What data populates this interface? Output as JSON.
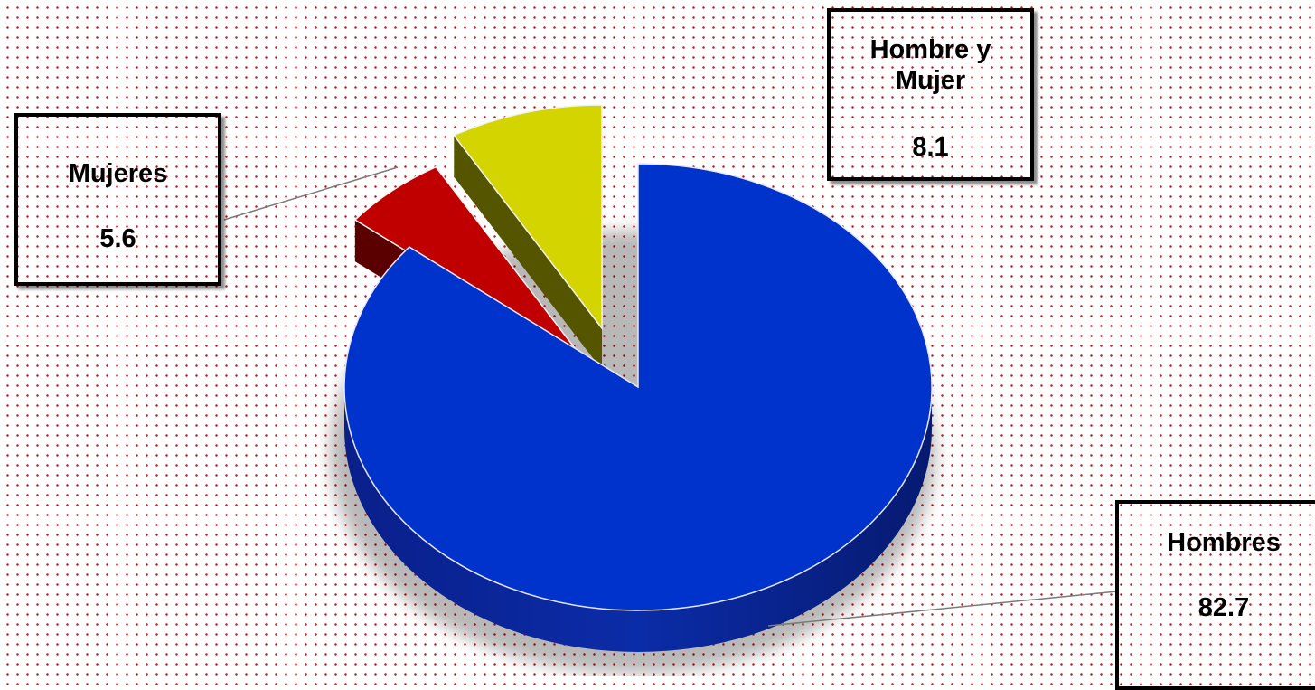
{
  "chart_data": {
    "type": "pie",
    "categories": [
      "Hombres",
      "Mujeres",
      "Hombre y Mujer"
    ],
    "values": [
      82.7,
      5.6,
      8.1
    ],
    "colors": [
      "#0033cc",
      "#c00000",
      "#d4d400"
    ],
    "side_colors": [
      "#001a80",
      "#5a0000",
      "#555500"
    ],
    "three_d": true,
    "exploded": [
      "Mujeres",
      "Hombre y Mujer"
    ],
    "grid": false,
    "legend": "none",
    "data_labels": "callouts"
  },
  "labels": {
    "mujeres": {
      "name": "Mujeres",
      "value": "5.6"
    },
    "hombre_y_mujer": {
      "name": "Hombre y Mujer",
      "value": "8.1"
    },
    "hombres": {
      "name": "Hombres",
      "value": "82.7"
    }
  }
}
